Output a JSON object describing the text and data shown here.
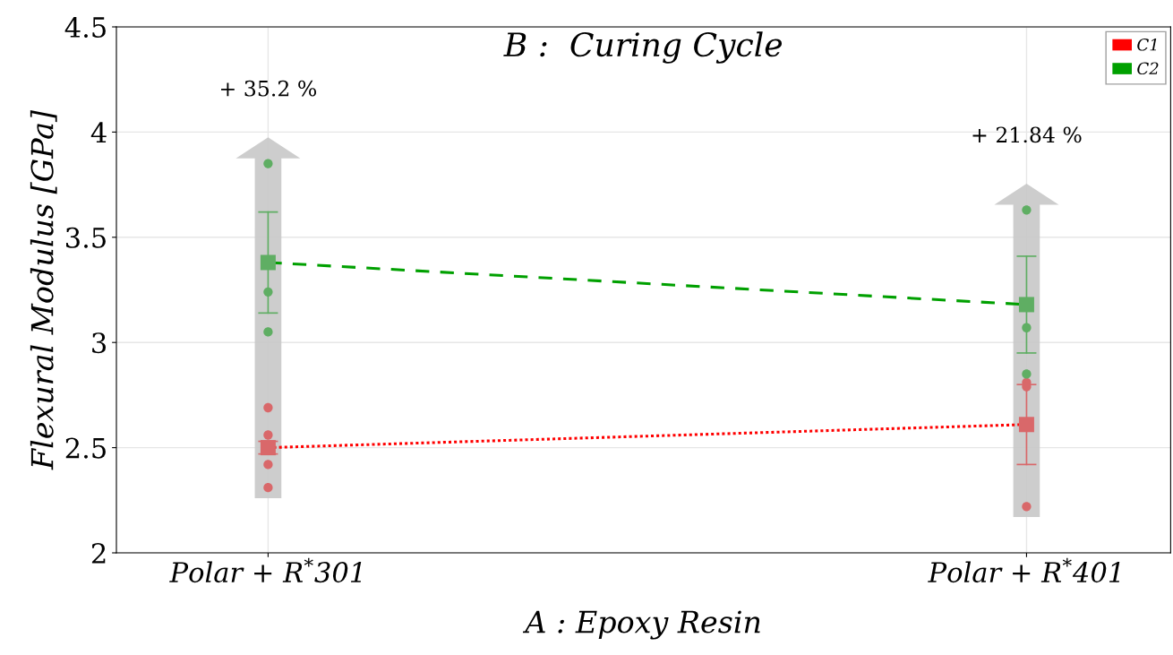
{
  "chart_data": {
    "type": "line",
    "title": "B :  Curing Cycle",
    "xlabel": "A : Epoxy Resin",
    "ylabel": "Flexural Modulus [GPa]",
    "categories": [
      "Polar + R$^{*}$301",
      "Polar + R$^{*}$401"
    ],
    "ylim": [
      2,
      4.5
    ],
    "yticks": [
      2,
      2.5,
      3,
      3.5,
      4,
      4.5
    ],
    "grid": true,
    "legend": "top right",
    "series": [
      {
        "name": "C1",
        "color": "#ff0000",
        "line_style": "dotted",
        "marker": "none",
        "values": [
          2.5,
          2.61
        ]
      },
      {
        "name": "C2",
        "color": "#00a000",
        "line_style": "dashed",
        "marker": "none",
        "values": [
          3.38,
          3.18
        ]
      },
      {
        "type": "scatter",
        "color": "#d9686a",
        "marker": "square",
        "values": [
          2.5,
          2.61
        ],
        "errors": [
          0.03,
          0.19
        ]
      },
      {
        "type": "scatter",
        "color": "#5fae63",
        "marker": "square",
        "values": [
          3.38,
          3.18
        ],
        "errors": [
          0.24,
          0.23
        ]
      },
      {
        "type": "scatter",
        "color": "#d9686a",
        "marker": "circle",
        "x": [
          "Polar + R$^{*}$301",
          "Polar + R$^{*}$301",
          "Polar + R$^{*}$301",
          "Polar + R$^{*}$301",
          "Polar + R$^{*}$401",
          "Polar + R$^{*}$401",
          "Polar + R$^{*}$401"
        ],
        "values": [
          2.69,
          2.56,
          2.42,
          2.31,
          2.81,
          2.79,
          2.22
        ]
      },
      {
        "type": "scatter",
        "color": "#5fae63",
        "marker": "circle",
        "x": [
          "Polar + R$^{*}$301",
          "Polar + R$^{*}$301",
          "Polar + R$^{*}$301",
          "Polar + R$^{*}$401",
          "Polar + R$^{*}$401",
          "Polar + R$^{*}$401"
        ],
        "values": [
          3.85,
          3.24,
          3.05,
          3.63,
          3.07,
          2.85
        ]
      }
    ],
    "annotations": [
      "+ 35.2 %",
      "+ 21.84 %"
    ]
  }
}
